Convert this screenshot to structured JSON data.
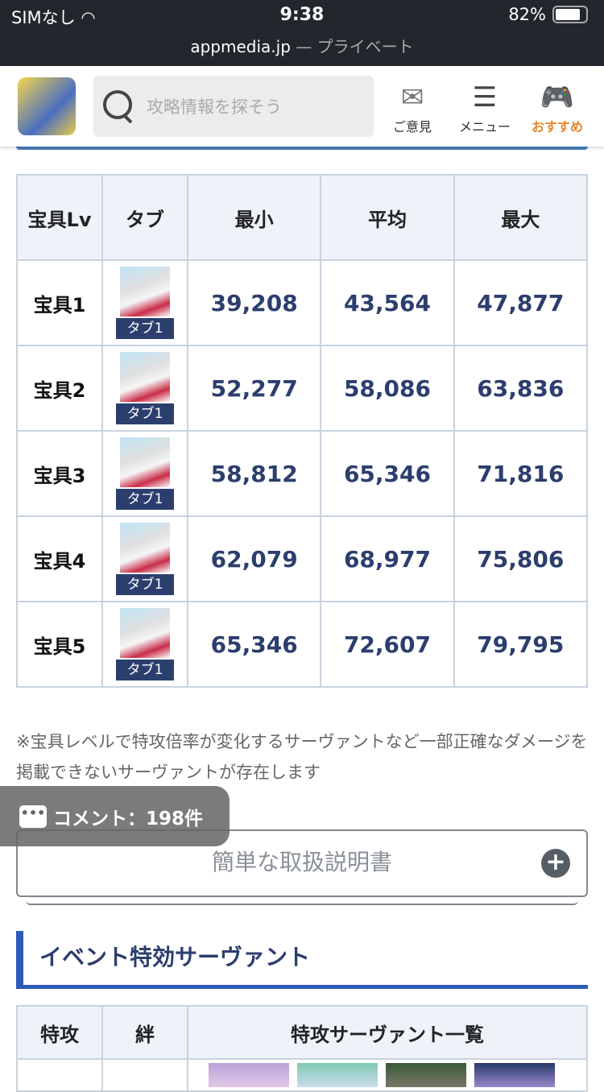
{
  "status_bar": {
    "carrier": "SIMなし",
    "time": "9:38",
    "battery": "82%",
    "battery_level": 0.82,
    "url": "appmedia.jp",
    "private_label": "— プライベート"
  },
  "header": {
    "search_placeholder": "攻略情報を探そう",
    "feedback": "ご意見",
    "menu": "メニュー",
    "recommend": "おすすめ",
    "accent": "#e8842a"
  },
  "damage_table": {
    "headers": [
      "宝具Lv",
      "タブ",
      "最小",
      "平均",
      "最大"
    ],
    "rows": [
      {
        "lv": "宝具1",
        "tab": "タブ1",
        "min": "39,208",
        "avg": "43,564",
        "max": "47,877"
      },
      {
        "lv": "宝具2",
        "tab": "タブ1",
        "min": "52,277",
        "avg": "58,086",
        "max": "63,836"
      },
      {
        "lv": "宝具3",
        "tab": "タブ1",
        "min": "58,812",
        "avg": "65,346",
        "max": "71,816"
      },
      {
        "lv": "宝具4",
        "tab": "タブ1",
        "min": "62,079",
        "avg": "68,977",
        "max": "75,806"
      },
      {
        "lv": "宝具5",
        "tab": "タブ1",
        "min": "65,346",
        "avg": "72,607",
        "max": "79,795"
      }
    ]
  },
  "note": "※宝具レベルで特攻倍率が変化するサーヴァントなど一部正確なダメージを掲載できないサーヴァントが存在します",
  "comment_button": "コメント：198件",
  "accordion": {
    "label": "簡単な取扱説明書",
    "icon": "plus-icon"
  },
  "section_title": "イベント特効サーヴァント",
  "servant_table": {
    "headers": [
      "特攻",
      "絆",
      "特攻サーヴァント一覧"
    ]
  }
}
